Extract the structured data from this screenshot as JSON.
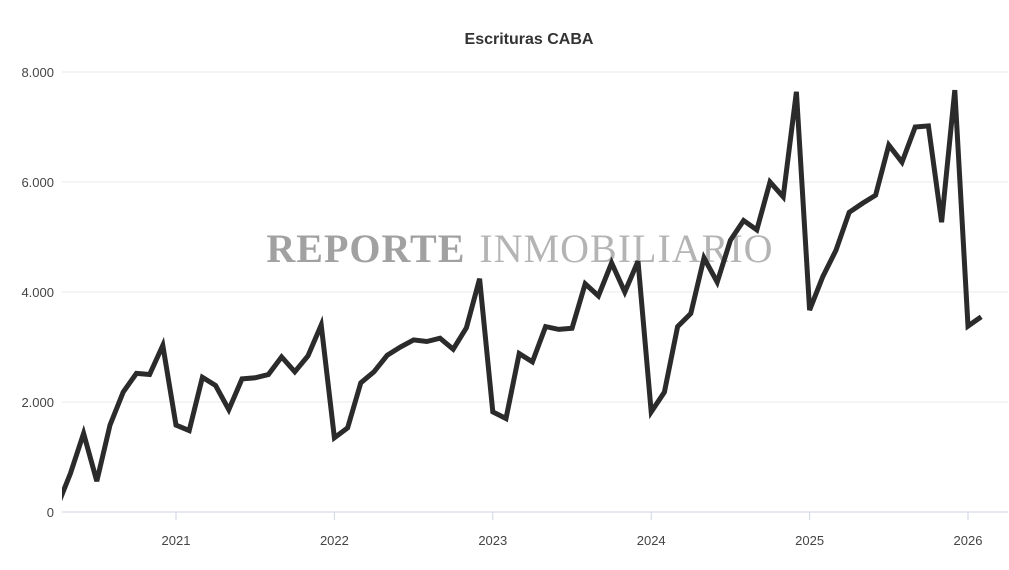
{
  "chart_data": {
    "type": "line",
    "title": "Escrituras CABA",
    "xlabel": "",
    "ylabel": "",
    "ylim": [
      0,
      8000
    ],
    "yticks": [
      0,
      2000,
      4000,
      6000,
      8000
    ],
    "ytick_labels": [
      "0",
      "2.000",
      "4.000",
      "6.000",
      "8.000"
    ],
    "xtick_labels": [
      "2021",
      "2022",
      "2023",
      "2024",
      "2025",
      "2026"
    ],
    "grid": true,
    "legend": "none",
    "watermark": {
      "part1": "REPORTE",
      "part2": "INMOBILIARIO"
    },
    "series": [
      {
        "name": "Escrituras CABA",
        "color": "#2b2b2b",
        "start": "2020-04",
        "values": [
          100,
          700,
          1430,
          560,
          1580,
          2180,
          2520,
          2500,
          3030,
          1580,
          1480,
          2450,
          2300,
          1860,
          2420,
          2440,
          2500,
          2820,
          2550,
          2840,
          3400,
          1350,
          1530,
          2350,
          2550,
          2850,
          3000,
          3130,
          3100,
          3160,
          2960,
          3350,
          4240,
          1820,
          1700,
          2880,
          2730,
          3370,
          3320,
          3340,
          4150,
          3930,
          4530,
          4000,
          4560,
          1820,
          2180,
          3370,
          3610,
          4620,
          4180,
          4940,
          5300,
          5130,
          6000,
          5730,
          7640,
          3670,
          4280,
          4760,
          5450,
          5610,
          5760,
          6670,
          6360,
          7000,
          7020,
          5270,
          7670,
          3380,
          3550
        ]
      }
    ]
  }
}
